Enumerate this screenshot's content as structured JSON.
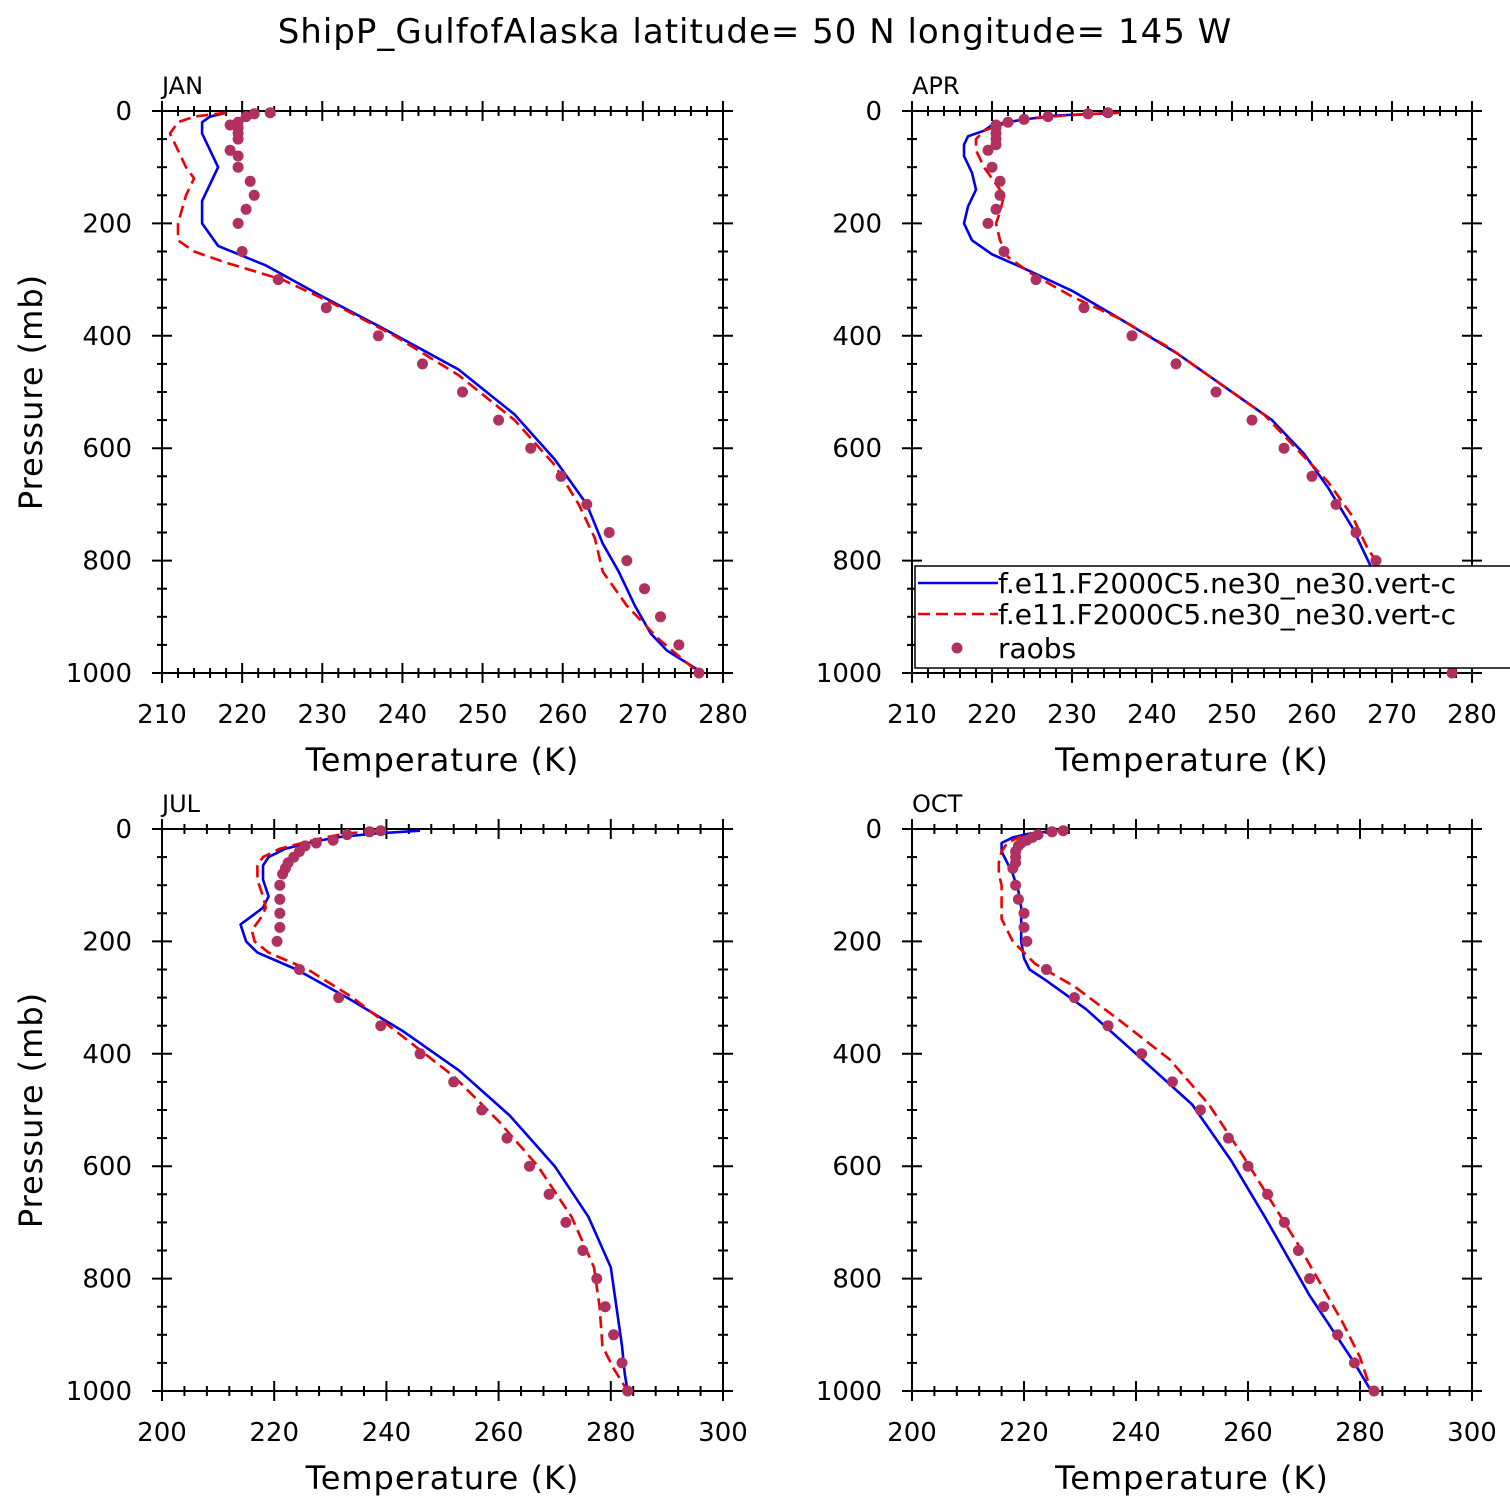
{
  "title": "ShipP_GulfofAlaska  latitude= 50 N longitude= 145 W",
  "colors": {
    "model1": "#0000ee",
    "model2": "#ee0000",
    "obs": "#b03060",
    "axis": "#000000"
  },
  "legend": {
    "entries": [
      {
        "label": "f.e11.F2000C5.ne30_ne30.vert-c",
        "style": "solid",
        "color": "#0000ee"
      },
      {
        "label": "f.e11.F2000C5.ne30_ne30.vert-c",
        "style": "dashed",
        "color": "#ee0000"
      },
      {
        "label": "raobs",
        "style": "marker",
        "color": "#b03060"
      }
    ]
  },
  "chart_data": [
    {
      "type": "line",
      "panel": "JAN",
      "title": "JAN",
      "xlabel": "Temperature (K)",
      "ylabel": "Pressure (mb)",
      "xlim": [
        210,
        280
      ],
      "ylim": [
        1000,
        0
      ],
      "xticks": [
        210,
        220,
        230,
        240,
        250,
        260,
        270,
        280
      ],
      "yticks": [
        0,
        200,
        400,
        600,
        800,
        1000
      ],
      "series": [
        {
          "name": "f.e11.F2000C5.ne30_ne30.vert-c",
          "style": "solid",
          "x": [
            218,
            216,
            215,
            215,
            216,
            217,
            216,
            215,
            215,
            217,
            223,
            230,
            238,
            247,
            254,
            259,
            263,
            265,
            267,
            269,
            271,
            273,
            277.5
          ],
          "y": [
            3,
            10,
            20,
            40,
            70,
            100,
            130,
            160,
            200,
            240,
            275,
            330,
            390,
            460,
            540,
            620,
            700,
            770,
            820,
            880,
            930,
            960,
            1000
          ]
        },
        {
          "name": "f.e11.F2000C5.ne30_ne30.vert-c",
          "style": "dashed",
          "x": [
            218,
            214,
            212,
            211,
            212,
            213,
            214,
            213,
            212,
            212,
            214,
            218,
            225,
            231,
            239,
            247,
            254,
            259,
            262,
            264,
            265,
            268,
            272,
            277
          ],
          "y": [
            3,
            10,
            20,
            40,
            70,
            100,
            120,
            150,
            200,
            230,
            250,
            270,
            300,
            340,
            400,
            470,
            550,
            630,
            700,
            760,
            820,
            880,
            940,
            1000
          ]
        }
      ],
      "obs": {
        "x": [
          223.5,
          221.5,
          220.5,
          219.5,
          218.5,
          219.5,
          219.5,
          219.5,
          218.5,
          219.5,
          219.5,
          221,
          221.5,
          220.5,
          219.5,
          220,
          224.5,
          230.5,
          237,
          242.5,
          247.5,
          252,
          256,
          259.8,
          263,
          265.8,
          268,
          270.2,
          272.2,
          274.5,
          277
        ],
        "y": [
          3,
          5,
          10,
          20,
          25,
          30,
          40,
          50,
          70,
          80,
          100,
          125,
          150,
          175,
          200,
          250,
          300,
          350,
          400,
          450,
          500,
          550,
          600,
          650,
          700,
          750,
          800,
          850,
          900,
          950,
          1000
        ]
      }
    },
    {
      "type": "line",
      "panel": "APR",
      "title": "APR",
      "xlabel": "Temperature (K)",
      "ylabel": "",
      "xlim": [
        210,
        280
      ],
      "ylim": [
        1000,
        0
      ],
      "xticks": [
        210,
        220,
        230,
        240,
        250,
        260,
        270,
        280
      ],
      "yticks": [
        0,
        200,
        400,
        600,
        800,
        1000
      ],
      "series": [
        {
          "name": "f.e11.F2000C5.ne30_ne30.vert-c",
          "style": "solid",
          "x": [
            236,
            228,
            224,
            220,
            219,
            217,
            216.5,
            216.5,
            217.5,
            218,
            217,
            216.5,
            217.5,
            220,
            224,
            230,
            236,
            243,
            249,
            255,
            259,
            262,
            265,
            267,
            269,
            271,
            274,
            278
          ],
          "y": [
            3,
            8,
            15,
            25,
            35,
            45,
            60,
            80,
            110,
            140,
            170,
            200,
            230,
            255,
            280,
            320,
            370,
            430,
            490,
            550,
            610,
            670,
            740,
            800,
            860,
            910,
            960,
            1000
          ]
        },
        {
          "name": "f.e11.F2000C5.ne30_ne30.vert-c",
          "style": "dashed",
          "x": [
            236,
            229,
            224,
            221,
            219,
            218,
            218,
            219,
            220.5,
            221.5,
            221,
            220.5,
            221,
            222,
            225,
            230,
            236,
            242,
            248,
            254,
            258,
            262,
            265,
            267,
            270,
            273,
            276,
            278
          ],
          "y": [
            3,
            8,
            15,
            25,
            35,
            50,
            70,
            100,
            130,
            150,
            180,
            200,
            230,
            260,
            290,
            330,
            370,
            420,
            480,
            540,
            600,
            660,
            720,
            780,
            840,
            900,
            960,
            1000
          ]
        }
      ],
      "obs": {
        "x": [
          234.5,
          232,
          227,
          224,
          222,
          220.5,
          220.5,
          220.5,
          220.5,
          220.5,
          219.5,
          220,
          221,
          221,
          220.5,
          219.5,
          221.5,
          225.5,
          231.5,
          237.5,
          243,
          248,
          252.5,
          256.5,
          260,
          263,
          265.5,
          268,
          269.5,
          272,
          274.5,
          277.5
        ],
        "y": [
          3,
          5,
          10,
          15,
          20,
          25,
          30,
          40,
          50,
          60,
          70,
          100,
          125,
          150,
          175,
          200,
          250,
          300,
          350,
          400,
          450,
          500,
          550,
          600,
          650,
          700,
          750,
          800,
          850,
          900,
          950,
          1000
        ]
      }
    },
    {
      "type": "line",
      "panel": "JUL",
      "title": "JUL",
      "xlabel": "Temperature (K)",
      "ylabel": "Pressure (mb)",
      "xlim": [
        200,
        300
      ],
      "ylim": [
        1000,
        0
      ],
      "xticks": [
        200,
        220,
        240,
        260,
        280,
        300
      ],
      "yticks": [
        0,
        200,
        400,
        600,
        800,
        1000
      ],
      "series": [
        {
          "name": "f.e11.F2000C5.ne30_ne30.vert-c",
          "style": "solid",
          "x": [
            246,
            238,
            231,
            226,
            222,
            219,
            218,
            218,
            219,
            218,
            216,
            214,
            215,
            217,
            224,
            233,
            243,
            253,
            262,
            270,
            276,
            280,
            281,
            282,
            282.5,
            283
          ],
          "y": [
            3,
            8,
            15,
            25,
            35,
            50,
            65,
            90,
            120,
            140,
            155,
            170,
            200,
            220,
            250,
            300,
            360,
            430,
            510,
            600,
            690,
            780,
            850,
            920,
            970,
            1000
          ]
        },
        {
          "name": "f.e11.F2000C5.ne30_ne30.vert-c",
          "style": "dashed",
          "x": [
            238,
            233,
            229,
            225,
            221,
            218,
            217,
            217,
            218,
            218.5,
            217.5,
            216,
            216.5,
            219,
            226,
            234,
            243,
            252,
            260,
            267,
            273,
            277,
            278,
            278.5,
            280.5,
            283
          ],
          "y": [
            3,
            8,
            15,
            25,
            35,
            50,
            65,
            90,
            120,
            140,
            160,
            180,
            200,
            220,
            250,
            300,
            370,
            440,
            520,
            600,
            690,
            780,
            850,
            920,
            960,
            1000
          ]
        }
      ],
      "obs": {
        "x": [
          239,
          237,
          233,
          230.5,
          227.5,
          225.5,
          224.5,
          223.5,
          222.5,
          222,
          221.5,
          221,
          221,
          221,
          221,
          220.5,
          224.5,
          231.5,
          239,
          246,
          252,
          257,
          261.5,
          265.5,
          269,
          272,
          275,
          277.5,
          279,
          280.5,
          282,
          283
        ],
        "y": [
          3,
          5,
          10,
          20,
          25,
          30,
          40,
          50,
          60,
          70,
          80,
          100,
          125,
          150,
          175,
          200,
          250,
          300,
          350,
          400,
          450,
          500,
          550,
          600,
          650,
          700,
          750,
          800,
          850,
          900,
          950,
          1000
        ]
      }
    },
    {
      "type": "line",
      "panel": "OCT",
      "title": "OCT",
      "xlabel": "Temperature (K)",
      "ylabel": "",
      "xlim": [
        200,
        300
      ],
      "ylim": [
        1000,
        0
      ],
      "xticks": [
        200,
        220,
        240,
        260,
        280,
        300
      ],
      "yticks": [
        0,
        200,
        400,
        600,
        800,
        1000
      ],
      "series": [
        {
          "name": "f.e11.F2000C5.ne30_ne30.vert-c",
          "style": "solid",
          "x": [
            226,
            221,
            218,
            216,
            216,
            217,
            218,
            219,
            219.5,
            219.5,
            219.5,
            220,
            221,
            224,
            231,
            240,
            250,
            257,
            263,
            267,
            271,
            275,
            279,
            282
          ],
          "y": [
            3,
            8,
            15,
            25,
            40,
            60,
            80,
            110,
            140,
            170,
            200,
            230,
            250,
            270,
            320,
            400,
            490,
            590,
            690,
            760,
            830,
            890,
            950,
            1000
          ]
        },
        {
          "name": "f.e11.F2000C5.ne30_ne30.vert-c",
          "style": "dashed",
          "x": [
            226,
            222,
            219,
            217,
            216,
            215.5,
            215.5,
            216,
            216,
            216,
            216,
            217,
            218,
            220,
            222,
            229,
            237,
            246,
            253,
            259,
            264,
            269,
            273,
            277,
            280,
            282
          ],
          "y": [
            3,
            8,
            15,
            25,
            40,
            60,
            80,
            100,
            120,
            140,
            160,
            180,
            200,
            220,
            240,
            280,
            340,
            410,
            490,
            580,
            660,
            740,
            810,
            880,
            940,
            1000
          ]
        }
      ],
      "obs": {
        "x": [
          227,
          225,
          222.5,
          221.5,
          220.5,
          219.5,
          219,
          218.5,
          218.5,
          218.5,
          218,
          218.5,
          219,
          220,
          220,
          220.5,
          224,
          229,
          235,
          241,
          246.5,
          251.5,
          256.5,
          260,
          263.5,
          266.5,
          269,
          271,
          273.5,
          276,
          279,
          282.5
        ],
        "y": [
          3,
          5,
          10,
          15,
          20,
          25,
          30,
          40,
          50,
          60,
          70,
          100,
          125,
          150,
          175,
          200,
          250,
          300,
          350,
          400,
          450,
          500,
          550,
          600,
          650,
          700,
          750,
          800,
          850,
          900,
          950,
          1000
        ]
      }
    }
  ]
}
